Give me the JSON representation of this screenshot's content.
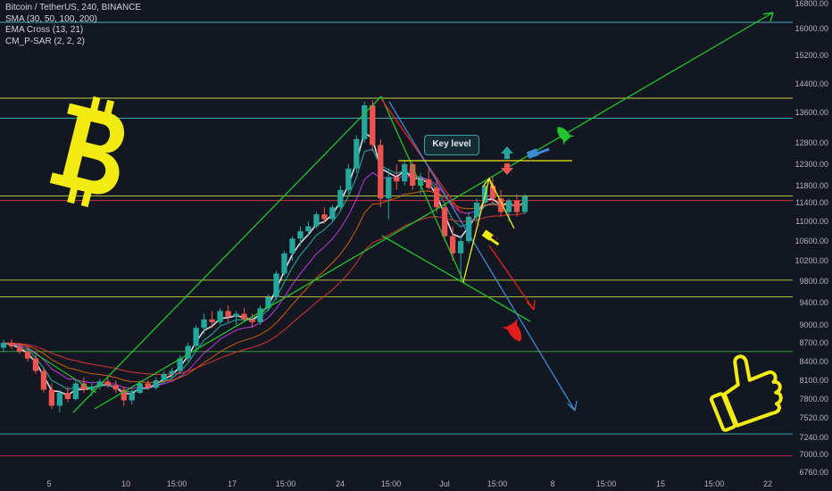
{
  "legend": {
    "title": "Bitcoin / TetherUS, 240, BINANCE",
    "indicators": [
      "SMA (30, 50, 100, 200)",
      "EMA Cross (13, 21)",
      "CM_P-SAR (2, 2, 2)"
    ]
  },
  "annotations": {
    "key_level": "Key level"
  },
  "colors": {
    "background": "#131722",
    "up_candle": "#26a69a",
    "down_candle": "#ef5350",
    "trend_green": "#22c32c",
    "trend_red": "#e0201a",
    "trend_blue": "#3a8ad6",
    "hline_teal": "#3fb5b0",
    "hline_green": "#3ab33a",
    "hline_yellow": "#c8d24a",
    "hline_red": "#d0304a",
    "bitcoin_yellow": "#f2ec13"
  },
  "icons": [
    "bitcoin-logo-icon",
    "thumbs-up-icon",
    "rocket-icon",
    "gavel-icon",
    "arrow-up-icon",
    "arrow-down-icon"
  ],
  "chart_data": {
    "type": "candlestick",
    "title": "Bitcoin / TetherUS, 240, BINANCE",
    "y_ticks": [
      16800,
      16000,
      15200,
      14400,
      13600,
      12800,
      12300,
      11800,
      11400,
      11000,
      10600,
      10200,
      9800,
      9400,
      9000,
      8700,
      8400,
      8100,
      7800,
      7520,
      7240,
      7000,
      6760
    ],
    "y_tick_labels": [
      "16800.00",
      "16000.00",
      "15200.00",
      "14400.00",
      "13600.00",
      "12800.00",
      "12300.00",
      "11800.00",
      "11400.00",
      "11000.00",
      "10600.00",
      "10200.00",
      "9800.00",
      "9400.00",
      "9000.00",
      "8700.00",
      "8400.00",
      "8100.00",
      "7800.00",
      "7520.00",
      "7240.00",
      "7000.00",
      "6760.00"
    ],
    "x_tick_labels": [
      "5",
      "10",
      "15:00",
      "17",
      "15:00",
      "24",
      "15:00",
      "Jul",
      "15:00",
      "8",
      "15:00",
      "15",
      "15:00",
      "22"
    ],
    "horizontal_levels": [
      16200,
      14000,
      13450,
      11560,
      11450,
      9820,
      9510,
      8560,
      7290,
      6980
    ],
    "key_level": 12350,
    "candles": [
      {
        "o": 8620,
        "h": 8750,
        "l": 8560,
        "c": 8700
      },
      {
        "o": 8700,
        "h": 8760,
        "l": 8600,
        "c": 8640
      },
      {
        "o": 8640,
        "h": 8700,
        "l": 8520,
        "c": 8560
      },
      {
        "o": 8560,
        "h": 8640,
        "l": 8400,
        "c": 8450
      },
      {
        "o": 8450,
        "h": 8500,
        "l": 8200,
        "c": 8250
      },
      {
        "o": 8250,
        "h": 8300,
        "l": 7900,
        "c": 7950
      },
      {
        "o": 7950,
        "h": 8050,
        "l": 7650,
        "c": 7700
      },
      {
        "o": 7700,
        "h": 7950,
        "l": 7600,
        "c": 7900
      },
      {
        "o": 7900,
        "h": 8000,
        "l": 7750,
        "c": 7800
      },
      {
        "o": 7800,
        "h": 8100,
        "l": 7780,
        "c": 8050
      },
      {
        "o": 8050,
        "h": 8150,
        "l": 7900,
        "c": 7950
      },
      {
        "o": 7950,
        "h": 8050,
        "l": 7850,
        "c": 8000
      },
      {
        "o": 8000,
        "h": 8120,
        "l": 7950,
        "c": 8080
      },
      {
        "o": 8080,
        "h": 8150,
        "l": 7980,
        "c": 8020
      },
      {
        "o": 8020,
        "h": 8100,
        "l": 7900,
        "c": 7950
      },
      {
        "o": 7950,
        "h": 8000,
        "l": 7700,
        "c": 7780
      },
      {
        "o": 7780,
        "h": 7950,
        "l": 7720,
        "c": 7900
      },
      {
        "o": 7900,
        "h": 8100,
        "l": 7880,
        "c": 8050
      },
      {
        "o": 8050,
        "h": 8100,
        "l": 7950,
        "c": 7980
      },
      {
        "o": 7980,
        "h": 8150,
        "l": 7950,
        "c": 8100
      },
      {
        "o": 8100,
        "h": 8250,
        "l": 8050,
        "c": 8200
      },
      {
        "o": 8200,
        "h": 8300,
        "l": 8120,
        "c": 8250
      },
      {
        "o": 8250,
        "h": 8500,
        "l": 8200,
        "c": 8450
      },
      {
        "o": 8450,
        "h": 8700,
        "l": 8400,
        "c": 8650
      },
      {
        "o": 8650,
        "h": 9000,
        "l": 8600,
        "c": 8950
      },
      {
        "o": 8950,
        "h": 9200,
        "l": 8850,
        "c": 9100
      },
      {
        "o": 9100,
        "h": 9250,
        "l": 8950,
        "c": 9050
      },
      {
        "o": 9050,
        "h": 9300,
        "l": 9000,
        "c": 9250
      },
      {
        "o": 9250,
        "h": 9350,
        "l": 9050,
        "c": 9150
      },
      {
        "o": 9150,
        "h": 9250,
        "l": 9000,
        "c": 9200
      },
      {
        "o": 9200,
        "h": 9300,
        "l": 9050,
        "c": 9100
      },
      {
        "o": 9100,
        "h": 9200,
        "l": 8950,
        "c": 9050
      },
      {
        "o": 9050,
        "h": 9350,
        "l": 9000,
        "c": 9300
      },
      {
        "o": 9300,
        "h": 9550,
        "l": 9250,
        "c": 9500
      },
      {
        "o": 9500,
        "h": 10000,
        "l": 9450,
        "c": 9950
      },
      {
        "o": 9950,
        "h": 10400,
        "l": 9900,
        "c": 10350
      },
      {
        "o": 10350,
        "h": 10700,
        "l": 10200,
        "c": 10650
      },
      {
        "o": 10650,
        "h": 10900,
        "l": 10500,
        "c": 10800
      },
      {
        "o": 10800,
        "h": 11000,
        "l": 10700,
        "c": 10900
      },
      {
        "o": 10900,
        "h": 11200,
        "l": 10850,
        "c": 11150
      },
      {
        "o": 11150,
        "h": 11300,
        "l": 10950,
        "c": 11050
      },
      {
        "o": 11050,
        "h": 11350,
        "l": 11000,
        "c": 11300
      },
      {
        "o": 11300,
        "h": 11800,
        "l": 11250,
        "c": 11700
      },
      {
        "o": 11700,
        "h": 12300,
        "l": 11600,
        "c": 12200
      },
      {
        "o": 12200,
        "h": 13000,
        "l": 12100,
        "c": 12900
      },
      {
        "o": 12900,
        "h": 13900,
        "l": 12800,
        "c": 13800
      },
      {
        "o": 13800,
        "h": 13950,
        "l": 12600,
        "c": 12750
      },
      {
        "o": 12750,
        "h": 12900,
        "l": 11300,
        "c": 11500
      },
      {
        "o": 11500,
        "h": 12200,
        "l": 11050,
        "c": 12000
      },
      {
        "o": 12000,
        "h": 12300,
        "l": 11700,
        "c": 11900
      },
      {
        "o": 11900,
        "h": 12400,
        "l": 11800,
        "c": 12300
      },
      {
        "o": 12300,
        "h": 12350,
        "l": 11700,
        "c": 11800
      },
      {
        "o": 11800,
        "h": 12100,
        "l": 11600,
        "c": 11950
      },
      {
        "o": 11950,
        "h": 12200,
        "l": 11700,
        "c": 11750
      },
      {
        "o": 11750,
        "h": 11900,
        "l": 11200,
        "c": 11300
      },
      {
        "o": 11300,
        "h": 11400,
        "l": 10600,
        "c": 10700
      },
      {
        "o": 10700,
        "h": 10900,
        "l": 10200,
        "c": 10350
      },
      {
        "o": 10350,
        "h": 10700,
        "l": 9800,
        "c": 10600
      },
      {
        "o": 10600,
        "h": 11200,
        "l": 10550,
        "c": 11100
      },
      {
        "o": 11100,
        "h": 11500,
        "l": 11000,
        "c": 11400
      },
      {
        "o": 11400,
        "h": 11900,
        "l": 11300,
        "c": 11800
      },
      {
        "o": 11800,
        "h": 12000,
        "l": 11400,
        "c": 11500
      },
      {
        "o": 11500,
        "h": 11700,
        "l": 11100,
        "c": 11200
      },
      {
        "o": 11200,
        "h": 11500,
        "l": 11000,
        "c": 11450
      },
      {
        "o": 11450,
        "h": 11600,
        "l": 11100,
        "c": 11200
      },
      {
        "o": 11200,
        "h": 11600,
        "l": 11150,
        "c": 11550
      }
    ]
  }
}
